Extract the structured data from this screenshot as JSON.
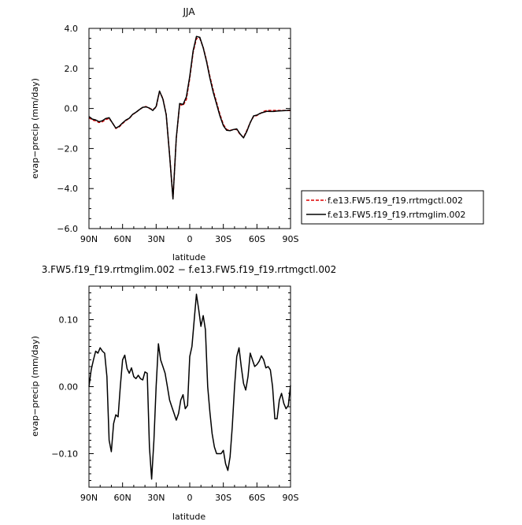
{
  "chart_data": [
    {
      "type": "line",
      "title": "JJA",
      "xlabel": "latitude",
      "ylabel": "evap−precip (mm/day)",
      "xlim": [
        90,
        -90
      ],
      "ylim": [
        -6.0,
        4.0
      ],
      "x_ticks": [
        90,
        60,
        30,
        0,
        -30,
        -60,
        -90
      ],
      "x_tick_labels": [
        "90N",
        "60N",
        "30N",
        "0",
        "30S",
        "60S",
        "90S"
      ],
      "y_ticks": [
        4,
        2,
        0,
        -2,
        -4,
        -6
      ],
      "y_tick_labels": [
        "4.0",
        "2.0",
        "0.0",
        "−2.0",
        "−4.0",
        "−6.0"
      ],
      "legend_position": "right",
      "x": [
        90,
        87,
        84,
        81,
        78,
        75,
        72,
        69,
        66,
        63,
        60,
        57,
        54,
        51,
        48,
        45,
        42,
        39,
        36,
        33,
        30,
        27,
        24,
        21,
        18,
        15,
        12,
        9,
        6,
        3,
        0,
        -3,
        -6,
        -9,
        -12,
        -15,
        -18,
        -21,
        -24,
        -27,
        -30,
        -33,
        -36,
        -39,
        -42,
        -45,
        -48,
        -51,
        -54,
        -57,
        -60,
        -63,
        -66,
        -69,
        -72,
        -75,
        -78,
        -81,
        -84,
        -87,
        -90
      ],
      "series": [
        {
          "name": "f.e13.FW5.f19_f19.rrtmgctl.002",
          "color": "#dd0000",
          "dash": "dashed",
          "values": [
            -0.45,
            -0.58,
            -0.62,
            -0.7,
            -0.66,
            -0.55,
            -0.5,
            -0.72,
            -1.0,
            -0.92,
            -0.75,
            -0.6,
            -0.5,
            -0.3,
            -0.2,
            -0.05,
            0.05,
            0.1,
            0.0,
            -0.05,
            0.05,
            0.85,
            0.5,
            -0.3,
            -2.3,
            -4.5,
            -1.5,
            0.2,
            0.15,
            0.45,
            1.5,
            2.8,
            3.5,
            3.5,
            3.05,
            2.4,
            1.6,
            0.9,
            0.3,
            -0.3,
            -0.8,
            -1.05,
            -1.1,
            -1.05,
            -1.05,
            -1.3,
            -1.45,
            -1.1,
            -0.7,
            -0.4,
            -0.35,
            -0.25,
            -0.15,
            -0.1,
            -0.1,
            -0.1,
            -0.1,
            -0.1,
            -0.1,
            -0.1,
            -0.1
          ]
        },
        {
          "name": "f.e13.FW5.f19_f19.rrtmglim.002",
          "color": "#000000",
          "dash": "solid",
          "values": [
            -0.4,
            -0.53,
            -0.57,
            -0.66,
            -0.61,
            -0.5,
            -0.46,
            -0.73,
            -0.98,
            -0.89,
            -0.72,
            -0.58,
            -0.49,
            -0.29,
            -0.19,
            -0.06,
            0.06,
            0.08,
            0.02,
            -0.1,
            0.1,
            0.87,
            0.47,
            -0.31,
            -2.33,
            -4.52,
            -1.47,
            0.25,
            0.2,
            0.58,
            1.6,
            2.88,
            3.6,
            3.55,
            3.03,
            2.35,
            1.52,
            0.8,
            0.22,
            -0.38,
            -0.86,
            -1.09,
            -1.11,
            -1.05,
            -1.02,
            -1.27,
            -1.47,
            -1.14,
            -0.71,
            -0.37,
            -0.33,
            -0.24,
            -0.19,
            -0.14,
            -0.15,
            -0.15,
            -0.13,
            -0.12,
            -0.11,
            -0.1,
            -0.08
          ]
        }
      ]
    },
    {
      "type": "line",
      "title": "3.FW5.f19_f19.rrtmglim.002 − f.e13.FW5.f19_f19.rrtmgctl.002",
      "xlabel": "latitude",
      "ylabel": "evap−precip (mm/day)",
      "xlim": [
        90,
        -90
      ],
      "ylim": [
        -0.15,
        0.15
      ],
      "x_ticks": [
        90,
        60,
        30,
        0,
        -30,
        -60,
        -90
      ],
      "x_tick_labels": [
        "90N",
        "60N",
        "30N",
        "0",
        "30S",
        "60S",
        "90S"
      ],
      "y_ticks": [
        0.1,
        0.0,
        -0.1
      ],
      "y_tick_labels": [
        "0.10",
        "0.00",
        "−0.10"
      ],
      "x": [
        90,
        88,
        86,
        84,
        82,
        80,
        78,
        76,
        74,
        72,
        70,
        68,
        66,
        64,
        62,
        60,
        58,
        56,
        54,
        52,
        50,
        48,
        46,
        44,
        42,
        40,
        38,
        36,
        34,
        32,
        30,
        28,
        26,
        24,
        22,
        20,
        18,
        16,
        14,
        12,
        10,
        8,
        6,
        4,
        2,
        0,
        -2,
        -4,
        -6,
        -8,
        -10,
        -12,
        -14,
        -16,
        -18,
        -20,
        -22,
        -24,
        -26,
        -28,
        -30,
        -32,
        -34,
        -36,
        -38,
        -40,
        -42,
        -44,
        -46,
        -48,
        -50,
        -52,
        -54,
        -56,
        -58,
        -60,
        -62,
        -64,
        -66,
        -68,
        -70,
        -72,
        -74,
        -76,
        -78,
        -80,
        -82,
        -84,
        -86,
        -88,
        -90
      ],
      "series": [
        {
          "name": "",
          "color": "#000000",
          "values": [
            0.0,
            0.025,
            0.04,
            0.053,
            0.05,
            0.058,
            0.053,
            0.05,
            0.015,
            -0.08,
            -0.097,
            -0.055,
            -0.042,
            -0.045,
            0.0,
            0.04,
            0.047,
            0.027,
            0.02,
            0.028,
            0.015,
            0.012,
            0.017,
            0.012,
            0.01,
            0.022,
            0.02,
            -0.09,
            -0.138,
            -0.08,
            0.0,
            0.064,
            0.04,
            0.03,
            0.02,
            0.0,
            -0.02,
            -0.03,
            -0.04,
            -0.05,
            -0.04,
            -0.02,
            -0.012,
            -0.033,
            -0.028,
            0.045,
            0.06,
            0.1,
            0.138,
            0.115,
            0.09,
            0.106,
            0.085,
            0.0,
            -0.038,
            -0.07,
            -0.09,
            -0.1,
            -0.1,
            -0.1,
            -0.095,
            -0.115,
            -0.125,
            -0.105,
            -0.06,
            0.0,
            0.045,
            0.058,
            0.03,
            0.005,
            -0.005,
            0.015,
            0.05,
            0.04,
            0.03,
            0.033,
            0.038,
            0.046,
            0.04,
            0.028,
            0.03,
            0.025,
            0.0,
            -0.048,
            -0.048,
            -0.02,
            -0.01,
            -0.025,
            -0.033,
            -0.028,
            0.002
          ]
        }
      ]
    }
  ]
}
